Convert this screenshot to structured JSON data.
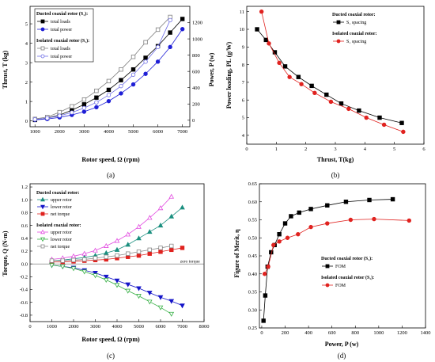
{
  "chart_data": [
    {
      "type": "line",
      "tag": "(a)",
      "xlabel": "Rotor speed, Ω (rpm)",
      "ylabel": "Thrust, T (kg)",
      "y2label": "Power, P (w)",
      "xlim": [
        800,
        7300
      ],
      "ylim": [
        -0.3,
        5.9
      ],
      "y2lim": [
        -80,
        1400
      ],
      "xticks": [
        1000,
        2000,
        3000,
        4000,
        5000,
        6000,
        7000
      ],
      "yticks": [
        0,
        1,
        2,
        3,
        4,
        5
      ],
      "y2ticks": [
        0,
        200,
        400,
        600,
        800,
        1000,
        1200
      ],
      "legend_groups": [
        {
          "title": "Ducted coaxial rotor (S₁):",
          "items": [
            "total loads",
            "total power"
          ]
        },
        {
          "title": "Isolated coaxial rotor (S₁):",
          "items": [
            "total loads",
            "total power"
          ]
        }
      ],
      "series": [
        {
          "name": "total loads",
          "group": "Ducted coaxial rotor (S₁):",
          "axis": "left",
          "marker": "square",
          "filled": true,
          "color": "#000000",
          "x": [
            1000,
            1500,
            2000,
            2500,
            3000,
            3500,
            4000,
            4500,
            5000,
            5500,
            6000,
            6500,
            7000
          ],
          "y": [
            0.05,
            0.15,
            0.3,
            0.55,
            0.85,
            1.2,
            1.6,
            2.1,
            2.65,
            3.25,
            3.85,
            4.55,
            5.25
          ]
        },
        {
          "name": "total power",
          "group": "Ducted coaxial rotor (S₁):",
          "axis": "right",
          "marker": "circle",
          "filled": true,
          "color": "#1f1fd6",
          "x": [
            1000,
            1500,
            2000,
            2500,
            3000,
            3500,
            4000,
            4500,
            5000,
            5500,
            6000,
            6500,
            7000
          ],
          "y": [
            5,
            15,
            35,
            65,
            105,
            160,
            235,
            330,
            440,
            570,
            720,
            900,
            1120
          ]
        },
        {
          "name": "total loads",
          "group": "Isolated coaxial rotor (S₁):",
          "axis": "left",
          "marker": "square",
          "filled": false,
          "color": "#7f7f7f",
          "x": [
            1000,
            1500,
            2000,
            2500,
            3000,
            3500,
            4000,
            4500,
            5000,
            5500,
            6000,
            6500
          ],
          "y": [
            0.1,
            0.2,
            0.45,
            0.75,
            1.1,
            1.55,
            2.05,
            2.65,
            3.3,
            4.05,
            4.7,
            5.35
          ]
        },
        {
          "name": "total power",
          "group": "Isolated coaxial rotor (S₁):",
          "axis": "right",
          "marker": "circle",
          "filled": false,
          "color": "#6f6fe6",
          "x": [
            1000,
            1500,
            2000,
            2500,
            3000,
            3500,
            4000,
            4500,
            5000,
            5500,
            6000,
            6500
          ],
          "y": [
            10,
            25,
            55,
            95,
            150,
            220,
            310,
            420,
            560,
            720,
            900,
            1230
          ]
        }
      ]
    },
    {
      "type": "line",
      "tag": "(b)",
      "xlabel": "Thrust, T(kg)",
      "ylabel": "Power loading, PL (g/W)",
      "xlim": [
        0,
        6
      ],
      "ylim": [
        3.5,
        11.3
      ],
      "xticks": [
        0,
        1,
        2,
        3,
        4,
        5,
        6
      ],
      "yticks": [
        4,
        5,
        6,
        7,
        8,
        9,
        10,
        11
      ],
      "legend_groups": [
        {
          "title": "Ducted coaxial rotor:",
          "items": [
            "S₁ spacing"
          ]
        },
        {
          "title": "Isolated coaxial rotor:",
          "items": [
            "S₁ spacing"
          ]
        }
      ],
      "series": [
        {
          "name": "S₁ spacing",
          "group": "Ducted coaxial rotor:",
          "marker": "square",
          "filled": true,
          "color": "#000000",
          "x": [
            0.35,
            0.65,
            0.95,
            1.3,
            1.75,
            2.2,
            2.7,
            3.2,
            3.8,
            4.5,
            5.25
          ],
          "y": [
            10.0,
            9.4,
            8.7,
            7.9,
            7.3,
            6.8,
            6.3,
            5.8,
            5.4,
            5.0,
            4.7
          ]
        },
        {
          "name": "S₁ spacing",
          "group": "Isolated coaxial rotor:",
          "marker": "circle",
          "filled": true,
          "color": "#e0221f",
          "x": [
            0.5,
            0.75,
            1.1,
            1.45,
            1.85,
            2.3,
            2.85,
            3.45,
            4.05,
            4.65,
            5.3
          ],
          "y": [
            11.0,
            9.2,
            8.1,
            7.3,
            6.9,
            6.4,
            5.9,
            5.5,
            5.0,
            4.6,
            4.2
          ]
        }
      ]
    },
    {
      "type": "line",
      "tag": "(c)",
      "xlabel": "Rotor speed, Ω (rpm)",
      "ylabel": "Torque, Q (N·m)",
      "xlim": [
        0,
        8000
      ],
      "ylim": [
        -0.9,
        1.25
      ],
      "xticks": [
        0,
        1000,
        2000,
        3000,
        4000,
        5000,
        6000,
        7000,
        8000
      ],
      "yticks": [
        -0.8,
        -0.6,
        -0.4,
        -0.2,
        0.0,
        0.2,
        0.4,
        0.6,
        0.8,
        1.0,
        1.2
      ],
      "annotation": "zero torque",
      "legend_groups": [
        {
          "title": "Ducted coaxial rotor:",
          "items": [
            "upper rotor",
            "lower rotor",
            "net torque"
          ]
        },
        {
          "title": "Isolated coaxial rotor:",
          "items": [
            "upper rotor",
            "lower rotor",
            "net torque"
          ]
        }
      ],
      "series": [
        {
          "name": "upper rotor",
          "group": "Ducted coaxial rotor:",
          "marker": "triangle-up",
          "filled": true,
          "color": "#1a8f7f",
          "x": [
            1000,
            1500,
            2000,
            2500,
            3000,
            3500,
            4000,
            4500,
            5000,
            5500,
            6000,
            6500,
            7000
          ],
          "y": [
            0.05,
            0.06,
            0.08,
            0.1,
            0.13,
            0.17,
            0.22,
            0.3,
            0.4,
            0.5,
            0.6,
            0.74,
            0.88
          ]
        },
        {
          "name": "lower rotor",
          "group": "Ducted coaxial rotor:",
          "marker": "triangle-down",
          "filled": true,
          "color": "#1414c8",
          "x": [
            1000,
            1500,
            2000,
            2500,
            3000,
            3500,
            4000,
            4500,
            5000,
            5500,
            6000,
            6500,
            7000
          ],
          "y": [
            -0.02,
            -0.04,
            -0.06,
            -0.1,
            -0.14,
            -0.2,
            -0.26,
            -0.32,
            -0.38,
            -0.45,
            -0.52,
            -0.58,
            -0.65
          ]
        },
        {
          "name": "net torque",
          "group": "Ducted coaxial rotor:",
          "marker": "square",
          "filled": true,
          "color": "#e0221f",
          "x": [
            1000,
            1500,
            2000,
            2500,
            3000,
            3500,
            4000,
            4500,
            5000,
            5500,
            6000,
            6500,
            7000
          ],
          "y": [
            0.03,
            0.03,
            0.04,
            0.05,
            0.06,
            0.07,
            0.09,
            0.11,
            0.13,
            0.16,
            0.19,
            0.22,
            0.25
          ]
        },
        {
          "name": "upper rotor",
          "group": "Isolated coaxial rotor:",
          "marker": "triangle-up",
          "filled": false,
          "color": "#e24be0",
          "x": [
            1000,
            1500,
            2000,
            2500,
            3000,
            3500,
            4000,
            4500,
            5000,
            5500,
            6000,
            6500
          ],
          "y": [
            0.07,
            0.09,
            0.12,
            0.16,
            0.21,
            0.28,
            0.36,
            0.46,
            0.58,
            0.72,
            0.87,
            1.05
          ]
        },
        {
          "name": "lower rotor",
          "group": "Isolated coaxial rotor:",
          "marker": "triangle-down",
          "filled": false,
          "color": "#38b046",
          "x": [
            1000,
            1500,
            2000,
            2500,
            3000,
            3500,
            4000,
            4500,
            5000,
            5500,
            6000,
            6500
          ],
          "y": [
            -0.02,
            -0.04,
            -0.07,
            -0.12,
            -0.18,
            -0.25,
            -0.33,
            -0.42,
            -0.5,
            -0.59,
            -0.68,
            -0.78
          ]
        },
        {
          "name": "net torque",
          "group": "Isolated coaxial rotor:",
          "marker": "square",
          "filled": false,
          "color": "#8a8a8a",
          "x": [
            1000,
            1500,
            2000,
            2500,
            3000,
            3500,
            4000,
            4500,
            5000,
            5500,
            6000,
            6500
          ],
          "y": [
            0.05,
            0.05,
            0.06,
            0.07,
            0.09,
            0.11,
            0.13,
            0.16,
            0.19,
            0.22,
            0.25,
            0.28
          ]
        }
      ]
    },
    {
      "type": "line",
      "tag": "(d)",
      "xlabel": "Power, P (w)",
      "ylabel": "Figure of Merit, η",
      "xlim": [
        -20,
        1400
      ],
      "ylim": [
        0.25,
        0.65
      ],
      "xticks": [
        0,
        200,
        400,
        600,
        800,
        1000,
        1200,
        1400
      ],
      "yticks": [
        0.25,
        0.3,
        0.35,
        0.4,
        0.45,
        0.5,
        0.55,
        0.6,
        0.65
      ],
      "legend_groups": [
        {
          "title": "Ducted coaxial rotor (S₁):",
          "items": [
            "FOM"
          ]
        },
        {
          "title": "Isolated coaxial rotor (S₁):",
          "items": [
            "FOM"
          ]
        }
      ],
      "series": [
        {
          "name": "FOM",
          "group": "Ducted coaxial rotor (S₁):",
          "marker": "square",
          "filled": true,
          "color": "#000000",
          "x": [
            15,
            30,
            50,
            80,
            110,
            150,
            200,
            250,
            320,
            420,
            560,
            720,
            920,
            1120
          ],
          "y": [
            0.27,
            0.34,
            0.42,
            0.46,
            0.48,
            0.51,
            0.54,
            0.56,
            0.57,
            0.58,
            0.59,
            0.6,
            0.605,
            0.607
          ]
        },
        {
          "name": "FOM",
          "group": "Isolated coaxial rotor (S₁):",
          "marker": "circle",
          "filled": true,
          "color": "#e0221f",
          "x": [
            25,
            55,
            100,
            150,
            220,
            310,
            420,
            560,
            760,
            960,
            1260
          ],
          "y": [
            0.4,
            0.42,
            0.48,
            0.49,
            0.5,
            0.51,
            0.53,
            0.54,
            0.55,
            0.552,
            0.548
          ]
        }
      ]
    }
  ]
}
